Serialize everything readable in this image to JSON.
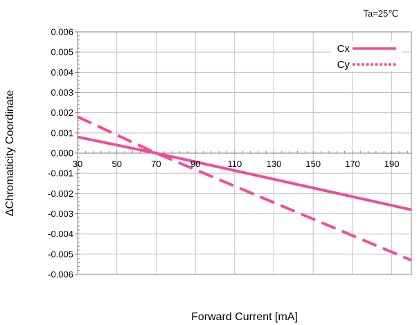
{
  "chart_data": {
    "type": "line",
    "title": "",
    "annotation": "Ta=25℃",
    "xlabel": "Forward Current [mA]",
    "ylabel": "ΔChromaticity Coordinate",
    "xlim": [
      30,
      200
    ],
    "ylim": [
      -0.006,
      0.006
    ],
    "x_ticks": [
      "30",
      "50",
      "70",
      "90",
      "110",
      "130",
      "150",
      "170",
      "190"
    ],
    "y_ticks": [
      "0.006",
      "0.005",
      "0.004",
      "0.003",
      "0.002",
      "0.001",
      "0.000",
      "-0.001",
      "-0.002",
      "-0.003",
      "-0.004",
      "-0.005",
      "-0.006"
    ],
    "grid": true,
    "legend_position": "top-right",
    "series": [
      {
        "name": "Cx",
        "style": "solid",
        "x": [
          30,
          70,
          200
        ],
        "y": [
          0.0008,
          0.0,
          -0.0028
        ]
      },
      {
        "name": "Cy",
        "style": "dashed",
        "x": [
          30,
          70,
          200
        ],
        "y": [
          0.0018,
          0.0,
          -0.0053
        ]
      }
    ],
    "colors": {
      "series": "#f04c9a",
      "grid": "#c0c0c0",
      "frame": "#808080"
    }
  }
}
